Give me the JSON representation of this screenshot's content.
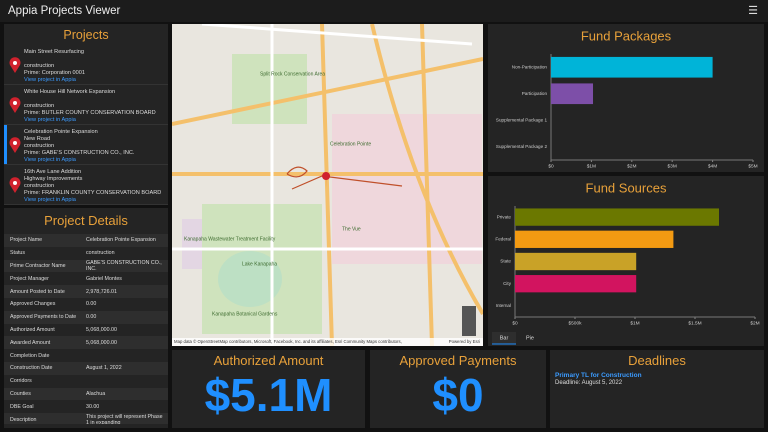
{
  "header": {
    "title": "Appia Projects Viewer",
    "menu": "☰"
  },
  "projects": {
    "title": "Projects",
    "selected": 2,
    "items": [
      {
        "lines": [
          "Main Street Resurfacing",
          "construction",
          "Prime: Corporation 0001"
        ],
        "link": "View project in Appia"
      },
      {
        "lines": [
          "White House Hill Network Expansion",
          "construction",
          "Prime: BUTLER COUNTY CONSERVATION BOARD"
        ],
        "link": "View project in Appia"
      },
      {
        "lines": [
          "Celebration Pointe Expansion",
          "New Road",
          "construction",
          "Prime: GABE'S CONSTRUCTION CO., INC."
        ],
        "link": "View project in Appia"
      },
      {
        "lines": [
          "16th Ave Lane Addition",
          "Highway Improvements",
          "construction",
          "Prime: FRANKLIN COUNTY CONSERVATION BOARD"
        ],
        "link": "View project in Appia"
      }
    ]
  },
  "details": {
    "title": "Project Details",
    "rows": [
      [
        "Project Name",
        "Celebration Pointe Expansion"
      ],
      [
        "Status",
        "construction"
      ],
      [
        "Prime Contractor Name",
        "GABE'S CONSTRUCTION CO., INC."
      ],
      [
        "Project Manager",
        "Gabriel Montes"
      ],
      [
        "Amount Posted to Date",
        "2,978,726.01"
      ],
      [
        "Approved Changes",
        "0.00"
      ],
      [
        "Approved Payments to Date",
        "0.00"
      ],
      [
        "Authorized Amount",
        "5,068,000.00"
      ],
      [
        "Awarded Amount",
        "5,068,000.00"
      ],
      [
        "Completion Date"
      ],
      [
        "Construction Date",
        "August 1, 2022"
      ],
      [
        "Corridors"
      ],
      [
        "Counties",
        "Alachua"
      ],
      [
        "DBE Goal",
        "30.00"
      ],
      [
        "Description",
        "This project will represent Phase 1 in expanding"
      ]
    ]
  },
  "map": {
    "labels": [
      "Split Rock Conservation Area",
      "Kanapaha Wastewater Treatment Facility",
      "Lake Kanapaha",
      "Kanapaha Botanical Gardens",
      "Celebration Pointe",
      "The Vue"
    ],
    "attribution": "Map data © OpenStreetMap contributors, Microsoft, Facebook, Inc. and its affiliates, Esri Community Maps contributors,",
    "powered": "Powered by Esri"
  },
  "chart_data": [
    {
      "type": "bar",
      "orientation": "horizontal",
      "title": "Fund Packages",
      "categories": [
        "Non-Participation",
        "Participation",
        "Supplemental Package 1",
        "Supplemental Package 2"
      ],
      "values": [
        4000000,
        1040000,
        0,
        0
      ],
      "colors": [
        "#00b4d8",
        "#7d4fa8",
        "#888888",
        "#888888"
      ],
      "xlim": [
        0,
        5000000
      ],
      "xticks": [
        {
          "value": 0,
          "label": "$0"
        },
        {
          "value": 1000000,
          "label": "$1M"
        },
        {
          "value": 2000000,
          "label": "$2M"
        },
        {
          "value": 3000000,
          "label": "$3M"
        },
        {
          "value": 4000000,
          "label": "$4M"
        },
        {
          "value": 5000000,
          "label": "$5M"
        }
      ]
    },
    {
      "type": "bar",
      "orientation": "horizontal",
      "title": "Fund Sources",
      "categories": [
        "Private",
        "Federal",
        "State",
        "City",
        "Internal"
      ],
      "values": [
        1700000,
        1320000,
        1010000,
        1010000,
        0
      ],
      "colors": [
        "#6b7800",
        "#f39a12",
        "#c9a227",
        "#d2145f",
        "#888888"
      ],
      "xlim": [
        0,
        2000000
      ],
      "xticks": [
        {
          "value": 0,
          "label": "$0"
        },
        {
          "value": 500000,
          "label": "$500k"
        },
        {
          "value": 1000000,
          "label": "$1M"
        },
        {
          "value": 1500000,
          "label": "$1.5M"
        },
        {
          "value": 2000000,
          "label": "$2M"
        }
      ],
      "tabs": [
        "Bar",
        "Pie"
      ]
    }
  ],
  "authorized": {
    "title": "Authorized Amount",
    "value": "$5.1M"
  },
  "approved": {
    "title": "Approved Payments",
    "value": "$0"
  },
  "deadlines": {
    "title": "Deadlines",
    "items": [
      {
        "name": "Primary TL for Construction",
        "date": "Deadline: August 5, 2022"
      }
    ]
  }
}
